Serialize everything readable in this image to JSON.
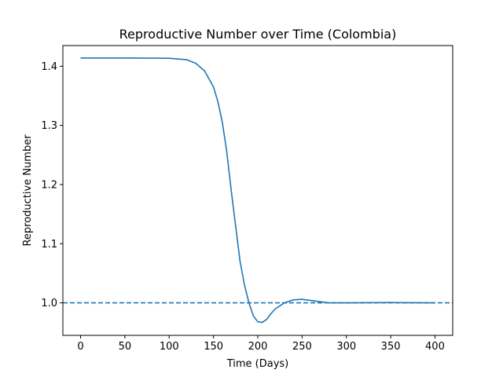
{
  "chart_data": {
    "type": "line",
    "title": "Reproductive Number over Time (Colombia)",
    "xlabel": "Time (Days)",
    "ylabel": "Reproductive Number",
    "xlim": [
      -20,
      420
    ],
    "ylim": [
      0.945,
      1.435
    ],
    "xticks": [
      0,
      50,
      100,
      150,
      200,
      250,
      300,
      350,
      400
    ],
    "yticks": [
      1.0,
      1.1,
      1.2,
      1.3,
      1.4
    ],
    "ytick_labels": [
      "1.0",
      "1.1",
      "1.2",
      "1.3",
      "1.4"
    ],
    "grid": false,
    "series": [
      {
        "color": "#1f77b4",
        "style": "solid",
        "x": [
          0,
          50,
          100,
          120,
          130,
          140,
          150,
          155,
          160,
          165,
          170,
          175,
          180,
          185,
          190,
          195,
          200,
          205,
          210,
          215,
          220,
          230,
          240,
          250,
          260,
          270,
          280,
          290,
          300,
          350,
          400
        ],
        "y": [
          1.414,
          1.414,
          1.4135,
          1.411,
          1.405,
          1.392,
          1.365,
          1.34,
          1.305,
          1.255,
          1.19,
          1.13,
          1.07,
          1.03,
          1.0,
          0.978,
          0.968,
          0.967,
          0.972,
          0.982,
          0.99,
          1.0,
          1.005,
          1.006,
          1.004,
          1.002,
          1.0,
          1.0,
          1.0,
          1.0005,
          1.0
        ]
      },
      {
        "color": "#1f77b4",
        "style": "dashed",
        "y_constant": 1.0
      }
    ]
  }
}
